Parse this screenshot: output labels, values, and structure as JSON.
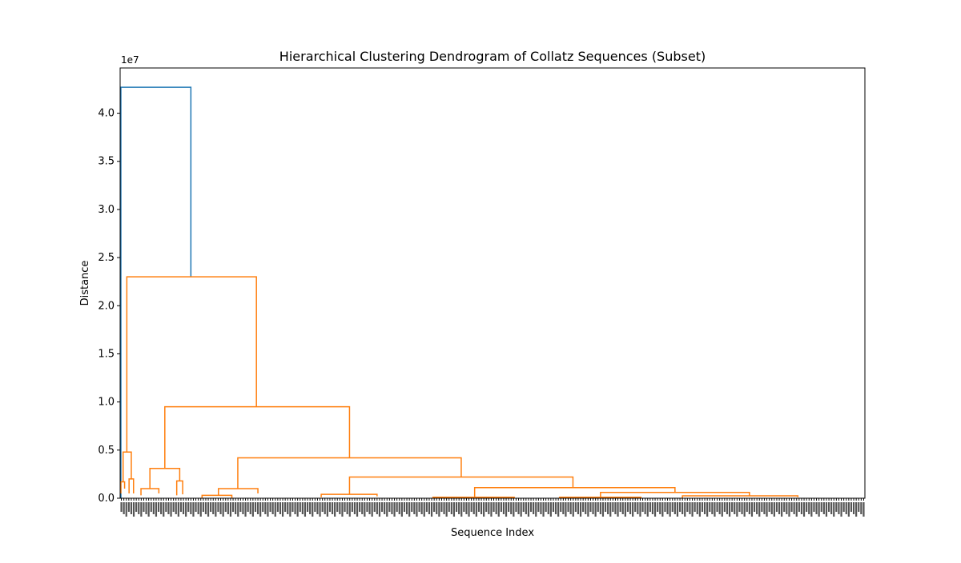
{
  "chart_data": {
    "type": "dendrogram",
    "title": "Hierarchical Clustering Dendrogram of Collatz Sequences (Subset)",
    "xlabel": "Sequence Index",
    "ylabel": "Distance",
    "y_offset_label": "1e7",
    "ylim": [
      0,
      4.47
    ],
    "yticks": [
      0,
      0.5,
      1.0,
      1.5,
      2.0,
      2.5,
      3.0,
      3.5,
      4.0
    ],
    "ytick_labels": [
      "0.0",
      "0.5",
      "1.0",
      "1.5",
      "2.0",
      "2.5",
      "3.0",
      "3.5",
      "4.0"
    ],
    "xlim": [
      0,
      1000
    ],
    "grid": false,
    "legend": "none",
    "colors": {
      "root": "#1f77b4",
      "cluster": "#ff7f0e",
      "leaf": "#000000"
    },
    "merges": [
      {
        "xl": 1,
        "xr": 95,
        "yl": 0.0,
        "yr": 2.3,
        "h": 4.27,
        "c": "root"
      },
      {
        "xl": 9,
        "xr": 183,
        "yl": 0.48,
        "yr": 0.95,
        "h": 2.3,
        "c": "cluster"
      },
      {
        "xl": 60,
        "xr": 308,
        "yl": 0.31,
        "yr": 0.42,
        "h": 0.95,
        "c": "cluster"
      },
      {
        "xl": 158,
        "xr": 458,
        "yl": 0.1,
        "yr": 0.22,
        "h": 0.42,
        "c": "cluster"
      },
      {
        "xl": 308,
        "xr": 608,
        "yl": 0.04,
        "yr": 0.11,
        "h": 0.22,
        "c": "cluster"
      },
      {
        "xl": 476,
        "xr": 745,
        "yl": 0.01,
        "yr": 0.06,
        "h": 0.11,
        "c": "cluster"
      },
      {
        "xl": 645,
        "xr": 845,
        "yl": 0.01,
        "yr": 0.025,
        "h": 0.06,
        "c": "cluster"
      },
      {
        "xl": 4,
        "xr": 15,
        "yl": 0.17,
        "yr": 0.2,
        "h": 0.48,
        "c": "cluster"
      },
      {
        "xl": 1,
        "xr": 6,
        "yl": 0.05,
        "yr": 0.1,
        "h": 0.17,
        "c": "cluster"
      },
      {
        "xl": 12,
        "xr": 18,
        "yl": 0.05,
        "yr": 0.05,
        "h": 0.2,
        "c": "cluster"
      },
      {
        "xl": 40,
        "xr": 80,
        "yl": 0.1,
        "yr": 0.18,
        "h": 0.31,
        "c": "cluster"
      },
      {
        "xl": 28,
        "xr": 52,
        "yl": 0.03,
        "yr": 0.05,
        "h": 0.1,
        "c": "cluster"
      },
      {
        "xl": 76,
        "xr": 84,
        "yl": 0.03,
        "yr": 0.04,
        "h": 0.18,
        "c": "cluster"
      },
      {
        "xl": 132,
        "xr": 185,
        "yl": 0.03,
        "yr": 0.05,
        "h": 0.1,
        "c": "cluster"
      },
      {
        "xl": 110,
        "xr": 150,
        "yl": 0.0,
        "yr": 0.0,
        "h": 0.03,
        "c": "cluster"
      },
      {
        "xl": 270,
        "xr": 345,
        "yl": 0.01,
        "yr": 0.02,
        "h": 0.04,
        "c": "cluster"
      },
      {
        "xl": 420,
        "xr": 530,
        "yl": 0.0,
        "yr": 0.01,
        "h": 0.01,
        "c": "cluster"
      },
      {
        "xl": 590,
        "xr": 700,
        "yl": 0.0,
        "yr": 0.01,
        "h": 0.01,
        "c": "cluster"
      },
      {
        "xl": 755,
        "xr": 910,
        "yl": 0.0,
        "yr": 0.01,
        "h": 0.025,
        "c": "cluster"
      }
    ],
    "leaf_count": 300
  }
}
